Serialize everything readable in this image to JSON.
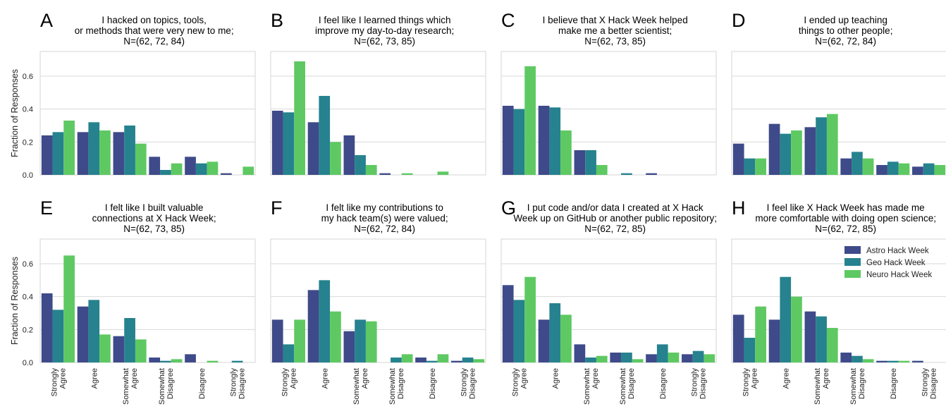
{
  "figure": {
    "ylabel": "Fraction of Responses",
    "categories": [
      [
        "Strongly",
        "Agree"
      ],
      [
        "Agree"
      ],
      [
        "Somewhat",
        "Agree"
      ],
      [
        "Somewhat",
        "Disagree"
      ],
      [
        "Disagree"
      ],
      [
        "Strongly",
        "Disagree"
      ]
    ],
    "yticks": [
      "0.0",
      "0.2",
      "0.4",
      "0.6"
    ],
    "series_names": [
      "Astro Hack Week",
      "Geo Hack Week",
      "Neuro Hack Week"
    ],
    "colors": [
      "#3e4a89",
      "#26828e",
      "#5ec962"
    ],
    "legend_position": "upper-right of panel H"
  },
  "chart_data": [
    {
      "type": "bar",
      "panel": "A",
      "title": [
        "I hacked on topics, tools,",
        "or methods that were very new to me;",
        "N=(62, 72, 84)"
      ],
      "ylim": [
        0,
        0.75
      ],
      "categories": [
        "Strongly Agree",
        "Agree",
        "Somewhat Agree",
        "Somewhat Disagree",
        "Disagree",
        "Strongly Disagree"
      ],
      "series": [
        {
          "name": "Astro Hack Week",
          "values": [
            0.24,
            0.26,
            0.26,
            0.11,
            0.11,
            0.01
          ]
        },
        {
          "name": "Geo Hack Week",
          "values": [
            0.26,
            0.32,
            0.3,
            0.03,
            0.07,
            0.0
          ]
        },
        {
          "name": "Neuro Hack Week",
          "values": [
            0.33,
            0.27,
            0.19,
            0.07,
            0.08,
            0.05
          ]
        }
      ]
    },
    {
      "type": "bar",
      "panel": "B",
      "title": [
        "I feel like I learned things which",
        "improve my day-to-day research;",
        "N=(62, 73, 85)"
      ],
      "ylim": [
        0,
        0.75
      ],
      "categories": [
        "Strongly Agree",
        "Agree",
        "Somewhat Agree",
        "Somewhat Disagree",
        "Disagree",
        "Strongly Disagree"
      ],
      "series": [
        {
          "name": "Astro Hack Week",
          "values": [
            0.39,
            0.32,
            0.24,
            0.01,
            0.0,
            0.0
          ]
        },
        {
          "name": "Geo Hack Week",
          "values": [
            0.38,
            0.48,
            0.12,
            0.0,
            0.0,
            0.0
          ]
        },
        {
          "name": "Neuro Hack Week",
          "values": [
            0.69,
            0.2,
            0.06,
            0.01,
            0.02,
            0.0
          ]
        }
      ]
    },
    {
      "type": "bar",
      "panel": "C",
      "title": [
        "I believe that X Hack Week helped",
        "make me a better scientist;",
        "N=(62, 73, 85)"
      ],
      "ylim": [
        0,
        0.75
      ],
      "categories": [
        "Strongly Agree",
        "Agree",
        "Somewhat Agree",
        "Somewhat Disagree",
        "Disagree",
        "Strongly Disagree"
      ],
      "series": [
        {
          "name": "Astro Hack Week",
          "values": [
            0.42,
            0.42,
            0.15,
            0.0,
            0.01,
            0.0
          ]
        },
        {
          "name": "Geo Hack Week",
          "values": [
            0.4,
            0.41,
            0.15,
            0.01,
            0.0,
            0.0
          ]
        },
        {
          "name": "Neuro Hack Week",
          "values": [
            0.66,
            0.27,
            0.06,
            0.0,
            0.0,
            0.0
          ]
        }
      ]
    },
    {
      "type": "bar",
      "panel": "D",
      "title": [
        "I ended up teaching",
        "things to other people;",
        "N=(62, 72, 84)"
      ],
      "ylim": [
        0,
        0.75
      ],
      "categories": [
        "Strongly Agree",
        "Agree",
        "Somewhat Agree",
        "Somewhat Disagree",
        "Disagree",
        "Strongly Disagree"
      ],
      "series": [
        {
          "name": "Astro Hack Week",
          "values": [
            0.19,
            0.31,
            0.29,
            0.1,
            0.06,
            0.05
          ]
        },
        {
          "name": "Geo Hack Week",
          "values": [
            0.1,
            0.25,
            0.35,
            0.14,
            0.08,
            0.07
          ]
        },
        {
          "name": "Neuro Hack Week",
          "values": [
            0.1,
            0.27,
            0.37,
            0.1,
            0.07,
            0.06
          ]
        }
      ]
    },
    {
      "type": "bar",
      "panel": "E",
      "title": [
        "I felt like I built valuable",
        "connections at X Hack Week;",
        "N=(62, 73, 85)"
      ],
      "ylim": [
        0,
        0.75
      ],
      "categories": [
        "Strongly Agree",
        "Agree",
        "Somewhat Agree",
        "Somewhat Disagree",
        "Disagree",
        "Strongly Disagree"
      ],
      "series": [
        {
          "name": "Astro Hack Week",
          "values": [
            0.42,
            0.34,
            0.16,
            0.03,
            0.05,
            0.0
          ]
        },
        {
          "name": "Geo Hack Week",
          "values": [
            0.32,
            0.38,
            0.27,
            0.01,
            0.0,
            0.01
          ]
        },
        {
          "name": "Neuro Hack Week",
          "values": [
            0.65,
            0.17,
            0.14,
            0.02,
            0.01,
            0.0
          ]
        }
      ]
    },
    {
      "type": "bar",
      "panel": "F",
      "title": [
        "I felt like my contributions to",
        "my hack team(s) were valued;",
        "N=(62, 72, 84)"
      ],
      "ylim": [
        0,
        0.75
      ],
      "categories": [
        "Strongly Agree",
        "Agree",
        "Somewhat Agree",
        "Somewhat Disagree",
        "Disagree",
        "Strongly Disagree"
      ],
      "series": [
        {
          "name": "Astro Hack Week",
          "values": [
            0.26,
            0.44,
            0.19,
            0.0,
            0.03,
            0.01
          ]
        },
        {
          "name": "Geo Hack Week",
          "values": [
            0.11,
            0.5,
            0.26,
            0.03,
            0.01,
            0.03
          ]
        },
        {
          "name": "Neuro Hack Week",
          "values": [
            0.26,
            0.31,
            0.25,
            0.05,
            0.05,
            0.02
          ]
        }
      ]
    },
    {
      "type": "bar",
      "panel": "G",
      "title": [
        "I put code and/or data I created at X Hack",
        "Week up on GitHub or another public repository;",
        "N=(62, 72, 85)"
      ],
      "ylim": [
        0,
        0.75
      ],
      "categories": [
        "Strongly Agree",
        "Agree",
        "Somewhat Agree",
        "Somewhat Disagree",
        "Disagree",
        "Strongly Disagree"
      ],
      "series": [
        {
          "name": "Astro Hack Week",
          "values": [
            0.47,
            0.26,
            0.11,
            0.06,
            0.05,
            0.05
          ]
        },
        {
          "name": "Geo Hack Week",
          "values": [
            0.38,
            0.36,
            0.03,
            0.06,
            0.11,
            0.07
          ]
        },
        {
          "name": "Neuro Hack Week",
          "values": [
            0.52,
            0.29,
            0.04,
            0.02,
            0.06,
            0.05
          ]
        }
      ]
    },
    {
      "type": "bar",
      "panel": "H",
      "title": [
        "I feel like X Hack Week has made me",
        "more comfortable with doing open science;",
        "N=(62, 72, 85)"
      ],
      "ylim": [
        0,
        0.75
      ],
      "categories": [
        "Strongly Agree",
        "Agree",
        "Somewhat Agree",
        "Somewhat Disagree",
        "Disagree",
        "Strongly Disagree"
      ],
      "series": [
        {
          "name": "Astro Hack Week",
          "values": [
            0.29,
            0.26,
            0.31,
            0.06,
            0.01,
            0.01
          ]
        },
        {
          "name": "Geo Hack Week",
          "values": [
            0.15,
            0.52,
            0.28,
            0.04,
            0.01,
            0.0
          ]
        },
        {
          "name": "Neuro Hack Week",
          "values": [
            0.34,
            0.4,
            0.21,
            0.02,
            0.01,
            0.0
          ]
        }
      ]
    }
  ]
}
